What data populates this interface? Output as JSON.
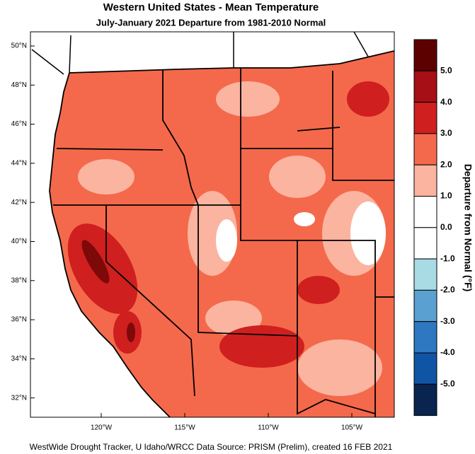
{
  "header": {
    "title": "Western United States - Mean Temperature",
    "subtitle": "July-January 2021  Departure from 1981-2010 Normal"
  },
  "map": {
    "latitude_labels": [
      "50°N",
      "48°N",
      "46°N",
      "44°N",
      "42°N",
      "40°N",
      "38°N",
      "36°N",
      "34°N",
      "32°N"
    ],
    "longitude_labels": [
      "120°W",
      "115°W",
      "110°W",
      "105°W"
    ]
  },
  "legend": {
    "title": "Departure from Normal (°F)",
    "labels": [
      "5.0",
      "4.0",
      "3.0",
      "2.0",
      "1.0",
      "0.0",
      "-1.0",
      "-2.0",
      "-3.0",
      "-4.0",
      "-5.0"
    ],
    "colors": [
      "#5c0000",
      "#a50f15",
      "#cf1f1f",
      "#f4694b",
      "#fbb4a0",
      "#ffffff",
      "#ffffff",
      "#a8dbe3",
      "#5aa0d0",
      "#2d78c0",
      "#1055a5",
      "#0a2450"
    ]
  },
  "footer": "WestWide Drought Tracker, U Idaho/WRCC Data Source: PRISM (Prelim), created 16 FEB 2021"
}
